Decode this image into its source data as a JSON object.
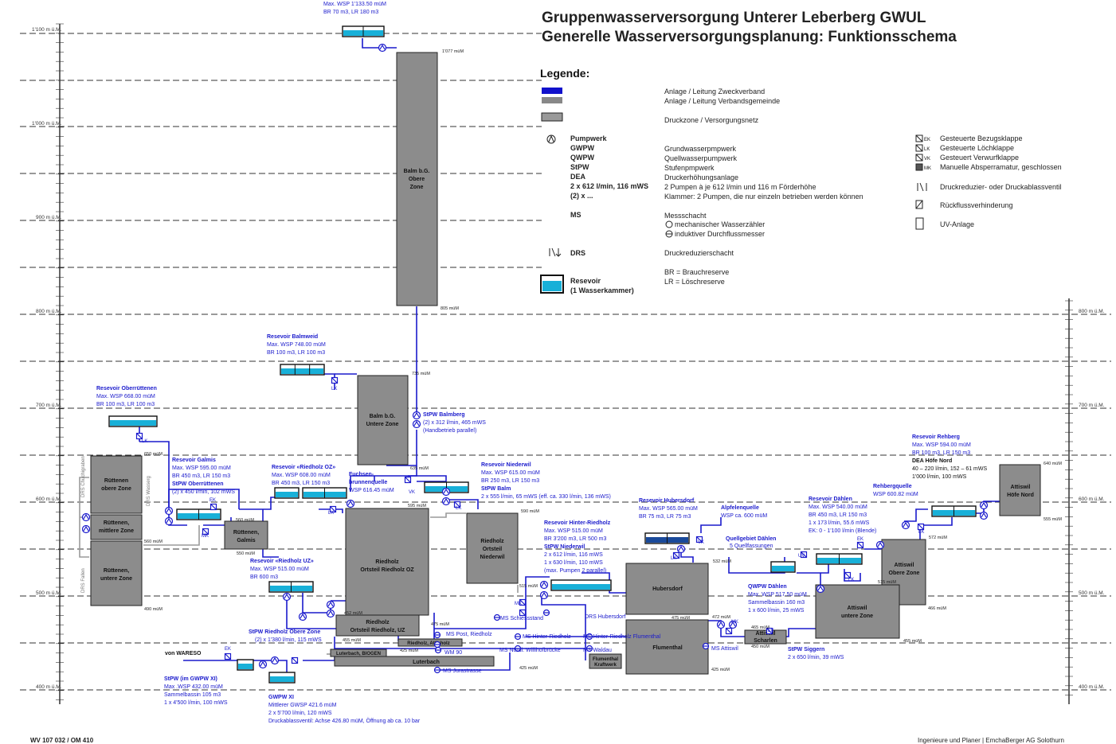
{
  "header": {
    "title_line1": "Gruppenwasserversorgung Unterer Leberberg GWUL",
    "title_line2": "Generelle Wasserversorgungsplanung: Funktionsschema"
  },
  "legend": {
    "heading": "Legende:",
    "zweckverband": "Anlage / Leitung Zweckverband",
    "verbandsgemeinde": "Anlage / Leitung Verbandsgemeinde",
    "druckzone": "Druckzone / Versorgungsnetz",
    "pumpwerk": "Pumpwerk",
    "gwpw_k": "GWPW",
    "gwpw_v": "Grundwasserpmpwerk",
    "qwpw_k": "QWPW",
    "qwpw_v": "Quellwasserpumpwerk",
    "stpw_k": "StPW",
    "stpw_v": "Stufenpmpwerk",
    "dea_k": "DEA",
    "dea_v": "Druckerhöhungsanlage",
    "pumps_k": "2 x 612 l/min, 116 mWS",
    "pumps_v": "2 Pumpen à je 612 l/min und 116 m Förderhöhe",
    "klammer_k": "(2) x ...",
    "klammer_v": "Klammer: 2 Pumpen, die nur einzeln betrieben werden können",
    "ms_k": "MS",
    "ms_v": "Messschacht",
    "ms_mech": "mechanischer Wasserzähler",
    "ms_ind": "induktiver Durchflussmesser",
    "drs_k": "DRS",
    "drs_v": "Druckreduzierschacht",
    "br": "BR = Brauchreserve",
    "lr": "LR = Löschreserve",
    "res_k1": "Resevoir",
    "res_k2": "(1 Wasserkammer)",
    "ek": "Gesteuerte Bezugsklappe",
    "lk": "Gesteuerte Löchklappe",
    "vk": "Gesteuert Verwurfklappe",
    "mk": "Manuelle Absperramatur, geschlossen",
    "drv": "Druckreduzier- oder Druckablassventil",
    "rv": "Rückflussverhinderung",
    "uv": "UV-Anlage"
  },
  "axis": {
    "left": [
      "1'100 m ü.M.",
      "1'000 m ü.M.",
      "900 m ü.M.",
      "800 m ü.M.",
      "700 m ü.M.",
      "600 m ü.M.",
      "500 m ü.M.",
      "400 m ü.M."
    ],
    "right": [
      "800 m ü.M.",
      "700 m ü.M.",
      "600 m ü.M.",
      "500 m ü.M.",
      "400 m ü.M."
    ]
  },
  "zones": {
    "balm_oz": "Balm b.G. Obere Zone",
    "balm_uz": "Balm b.G. Untere Zone",
    "ruettenen_oz": "Rüttenen obere Zone",
    "ruettenen_mz": "Rüttenen, mittlere Zone",
    "ruettenen_uz": "Rüttenen, untere Zone",
    "ruettenen_galmis": "Rüttenen, Galmis",
    "riedholz_oz": "Riedholz Ortsteil Riedholz OZ",
    "riedholz_uz": "Riedholz Ortsteil Riedholz, UZ",
    "riedholz_niederwil": "Riedholz Ortsteil Niederwil",
    "hubersdorf": "Hubersdorf",
    "flumenthal": "Flumenthal",
    "attiswil_oz": "Attiswil Obere Zone",
    "attiswil_uz": "Attiswil untere Zone",
    "attiswil_hoefe": "Attiswil Höfe Nord",
    "attiswil_scharlen": "Attiswil Scharlen",
    "luterbach": "Luterbach",
    "luterbach_biogen": "Luterbach, BIOGEN",
    "riedholz_attisholz": "Riedholz, Attisholz",
    "flumenthal_kraftwerk": "Flumenthal Kraftwerk"
  },
  "texts": {
    "top_res_1": "Max. WSP 1'133.50 müM",
    "top_res_2": "BR 70 m3, LR 180 m3",
    "elev_1077": "1'077 müM",
    "elev_805": "805 müM",
    "elev_735": "735 müM",
    "elev_635": "635 müM",
    "elev_595": "595 müM",
    "elev_590": "590 müM",
    "elev_515": "515 müM",
    "elev_650": "650 müM",
    "elev_560a": "560 müM",
    "elev_560b": "560 müM",
    "elev_550": "550 müM",
    "elev_490": "490 müM",
    "elev_452": "452 müM",
    "elev_475a": "475 müM",
    "elev_455a": "455 müM",
    "elev_425a": "425 müM",
    "elev_425b": "425 müM",
    "elev_475b": "475 müM",
    "elev_472": "472 müM",
    "elev_532": "532 müM",
    "elev_465": "465 müM",
    "elev_450": "450 müM",
    "elev_425c": "425 müM",
    "elev_455b": "455 müM",
    "elev_466": "466 müM",
    "elev_515b": "515 müM",
    "elev_572": "572 müM",
    "elev_640": "640 müM",
    "elev_555": "555 müM",
    "balmweid_t": "Resevoir Balmweid",
    "balmweid_1": "Max. WSP 748.00 müM",
    "balmweid_2": "BR 100 m3, LR 100 m3",
    "oberr_t": "Resevoir Oberrüttenen",
    "oberr_1": "Max. WSP 668.00 müM",
    "oberr_2": "BR 100 m3, LR 100 m3",
    "stpw_balmberg_t": "StPW Balmberg",
    "stpw_balmberg_1": "(2) x 312 l/min, 465 mWS",
    "stpw_balmberg_2": "(Handbetrieb parallel)",
    "galmis_t": "Resevoir Galmis",
    "galmis_1": "Max. WSP 595.00 müM",
    "galmis_2": "BR 450 m3, LR 150 m3",
    "galmis_3": "StPW Oberrüttenen",
    "galmis_4": "(2) x 450 l/min, 102 mWS",
    "rhoz_t": "Resevoir «Riedholz OZ»",
    "rhoz_1": "Max. WSP 608.00 müM",
    "rhoz_2": "BR 450 m3, LR 150 m3",
    "fuchsen_1": "Fuchsen-",
    "fuchsen_2": "brunnenquelle",
    "fuchsen_3": "WSP 616.45 müM",
    "niederwil_t": "Resevoir Niederwil",
    "niederwil_1": "Max. WSP 615.00 müM",
    "niederwil_2": "BR 250 m3, LR 150 m3",
    "niederwil_3": "StPW Balm",
    "niederwil_4": "2 x 555 l/min, 65 mWS (eff. ca. 330 l/min, 136 mWS)",
    "rhuz_t": "Resevoir «Riedholz UZ»",
    "rhuz_1": "Max. WSP 515.00 müM",
    "rhuz_2": "BR 600 m3",
    "hinterried_t": "Resevoir Hinter-Riedholz",
    "hinterried_1": "Max. WSP 515.00 müM",
    "hinterried_2": "BR 3'200 m3, LR 500 m3",
    "hinterried_3": "StPW Niederwil",
    "hinterried_4": "2 x 612 l/min, 116 mWS",
    "hinterried_5": "1 x 630 l/min, 110 mWS",
    "hinterried_6": "(max. Pumpen 2 parallel)",
    "hubersdorf_t": "Resevoir Hubersdorf",
    "hubersdorf_1": "Max. WSP 565.00 müM",
    "hubersdorf_2": "BR 75 m3, LR 75 m3",
    "alpfen_t": "Alpfelenquelle",
    "alpfen_1": "WSP ca. 600 müM",
    "quellgeb_t": "Quellgebiet Dählen",
    "quellgeb_1": "5 Quellfassungen",
    "daehlen_t": "Resevoir Dählen",
    "daehlen_1": "Max. WSP 540.00 müM",
    "daehlen_2": "BR 450 m3, LR 150 m3",
    "daehlen_3": "1 x 173 l/min, 55.6 mWS",
    "daehlen_4": "EK: 0 - 1'100 l/min (Blende)",
    "rehberg_t": "Rehbergquelle",
    "rehberg_1": "WSP 600.82 müM",
    "rehberg_res_t": "Resevoir Rehberg",
    "rehberg_res_1": "Max. WSP 594.00 müM",
    "rehberg_res_2": "BR 100 m3, LR 150 m3",
    "dea_t": "DEA Höfe Nord",
    "dea_1": "40 – 220 l/min, 152 – 61 mWS",
    "dea_2": "1'000 l/min, 100 mWS",
    "qwpw_t": "QWPW Dählen",
    "qwpw_1": "Max. WSP 517.50 müM",
    "qwpw_2": "Sammelbassin 160 m3",
    "qwpw_3": "1 x 600 l/min, 25 mWS",
    "siggern_t": "StPW Siggern",
    "siggern_1": "2 x 650 l/min, 39 mWS",
    "stpw_rhoz_t": "StPW Riedholz Obere Zone",
    "stpw_rhoz_1": "(2) x 1'380 l/min, 115 mWS",
    "wareso": "von WARESO",
    "gwpwxi_t": "StPW (im GWPW XI)",
    "gwpwxi_1": "Max .WSP 432.00 müM",
    "gwpwxi_2": "Sammelbassin 105 m3",
    "gwpwxi_3": "1 x 4'500 l/min, 100 mWS",
    "gwpw11_t": "GWPW XI",
    "gwpw11_1": "Mittlerer GWSP 421.6 müM",
    "gwpw11_2": "2 x 5'700 l/min, 120 mWS",
    "gwpw11_3": "Druckablassventil: Achse 426.80 müM, Öffnung ab ca. 10 bar",
    "ms_schiess": "MS Schiessstand",
    "ms_post": "MS Post, Riedholz",
    "ms_hinter": "MS Hinter-Riedholz",
    "ms_hinter_flum": "MS Hinter-Riedholz Flumenthal",
    "ms_noerdl": "MS Nördl. Willihofbrücke",
    "ms_jura": "MS Jurastrasse",
    "ms_waldau": "MS Waldau",
    "ms_attiswil": "MS Attiswil",
    "drs_hubersdorf": "DRS Hubersdorf",
    "wm90": "WM 90",
    "drs_chuch": "DRS Chuchigraben",
    "drs_wasser": "DRS Wasserg",
    "drs_fallen": "DRS Fallen",
    "lk": "LK",
    "ek": "EK",
    "vk": "VK",
    "mk": "MK",
    "uv": "UV"
  },
  "footer": {
    "left": "WV 107 032 / OM 410",
    "right": "Ingenieure und Planer | EmchaBerger AG Solothurn"
  },
  "colors": {
    "zweckverband": "#1111cc",
    "verbandsgemeinde": "#888888",
    "zone_fill": "#8c8c8c",
    "water": "#18b0d8"
  }
}
